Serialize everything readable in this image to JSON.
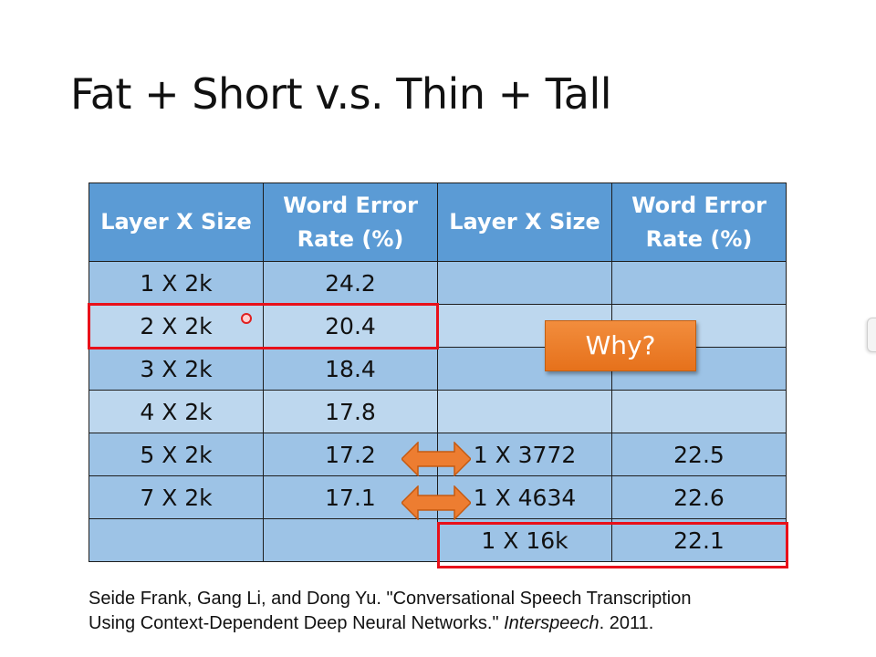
{
  "slide": {
    "title": "Fat + Short v.s. Thin + Tall"
  },
  "table": {
    "headers": [
      "Layer X Size",
      "Word Error Rate (%)",
      "Layer X Size",
      "Word Error Rate (%)"
    ],
    "rows": [
      [
        "1 X 2k",
        "24.2",
        "",
        ""
      ],
      [
        "2 X 2k",
        "20.4",
        "",
        ""
      ],
      [
        "3 X 2k",
        "18.4",
        "",
        ""
      ],
      [
        "4 X 2k",
        "17.8",
        "",
        ""
      ],
      [
        "5 X 2k",
        "17.2",
        "1 X 3772",
        "22.5"
      ],
      [
        "7 X 2k",
        "17.1",
        "1 X 4634",
        "22.6"
      ],
      [
        "",
        "",
        "1 X 16k",
        "22.1"
      ]
    ]
  },
  "callout": {
    "label": "Why?",
    "color": "#ed7d31"
  },
  "citation": {
    "authors_and_title": "Seide Frank, Gang Li, and Dong Yu. \"Conversational Speech Transcription",
    "title_cont": "Using Context-Dependent Deep Neural Networks.\"",
    "venue": "Interspeech",
    "year": ". 2011."
  },
  "colors": {
    "header": "#5b9bd5",
    "row_odd": "#9dc3e6",
    "row_even": "#bdd7ee",
    "highlight": "#e8101a",
    "arrow": "#ed7d31"
  }
}
